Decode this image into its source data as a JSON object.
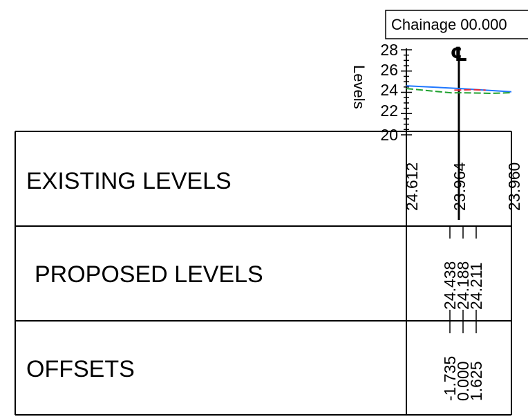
{
  "chainage_label": "Chainage 00.000",
  "axis": {
    "label": "Levels",
    "ticks": [
      "28",
      "26",
      "24",
      "22",
      "20"
    ]
  },
  "centerline_symbol": "℄",
  "rows": [
    {
      "label": "EXISTING LEVELS"
    },
    {
      "label": "PROPOSED LEVELS"
    },
    {
      "label": "OFFSETS"
    }
  ],
  "existing_levels": [
    "24.612",
    "23.964",
    "23.960"
  ],
  "proposed_levels": [
    "24.438",
    "24.188",
    "24.211"
  ],
  "offsets": [
    "-1.735",
    "0.000",
    "1.625"
  ],
  "chart_data": {
    "type": "line",
    "ylabel": "Levels",
    "ylim": [
      20,
      28
    ],
    "series": [
      {
        "color": "#1f77ff",
        "x": [
          -1.735,
          0.0,
          1.625
        ],
        "y": [
          24.612,
          24.35,
          24.05
        ]
      },
      {
        "color": "#e3263b",
        "x": [
          -0.2,
          0.4,
          0.8
        ],
        "y": [
          24.2,
          24.25,
          24.2
        ]
      },
      {
        "color": "#1fa12f",
        "x": [
          -1.735,
          -0.3,
          0.0,
          1.0,
          1.625
        ],
        "y": [
          24.35,
          23.95,
          23.96,
          23.9,
          23.96
        ]
      }
    ]
  }
}
